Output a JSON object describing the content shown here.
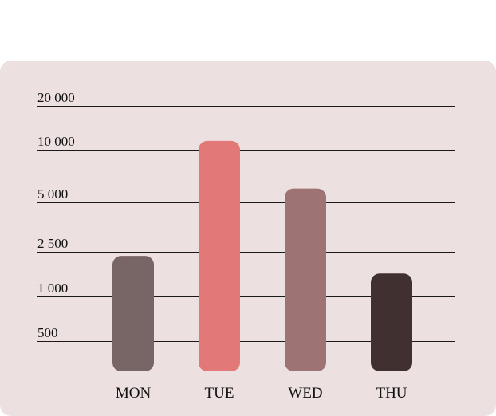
{
  "chart_data": {
    "type": "bar",
    "scale": "log",
    "grid": true,
    "yticks": [
      "20 000",
      "10 000",
      "5 000",
      "2 500",
      "1 000",
      "500"
    ],
    "ytick_values": [
      20000,
      10000,
      5000,
      2500,
      1000,
      500
    ],
    "categories": [
      "MON",
      "TUE",
      "WED",
      "THU"
    ],
    "values": [
      2300,
      11500,
      6000,
      1600
    ],
    "colors": [
      "#776665",
      "#e27878",
      "#9e7373",
      "#413030"
    ],
    "background": "#ece0e0"
  }
}
